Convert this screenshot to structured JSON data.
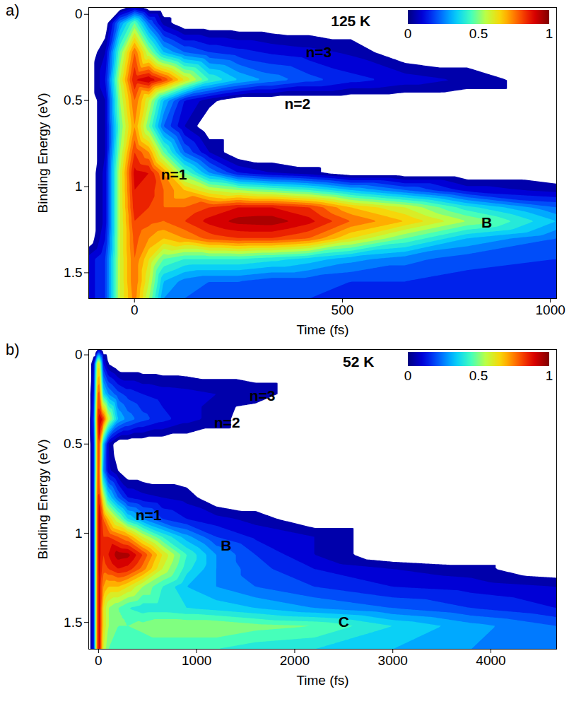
{
  "chart_data": [
    {
      "type": "heatmap",
      "panel": "a)",
      "x_label": "Time (fs)",
      "y_label": "Binding Energy (eV)",
      "xlim": [
        -110,
        1015
      ],
      "xticks": [
        0,
        500,
        1000
      ],
      "ylim": [
        1.65,
        -0.04
      ],
      "yticks": [
        0,
        0.5,
        1,
        1.5
      ],
      "x": [
        -110,
        -70,
        -35,
        0,
        35,
        70,
        120,
        180,
        250,
        330,
        420,
        520,
        650,
        800,
        1015
      ],
      "y": [
        -0.04,
        0.05,
        0.22,
        0.38,
        0.5,
        0.65,
        0.8,
        0.92,
        1.02,
        1.12,
        1.2,
        1.3,
        1.42,
        1.55,
        1.65
      ],
      "values": [
        [
          0,
          0,
          0,
          0.1,
          0,
          0,
          0,
          0,
          0,
          0,
          0,
          0,
          0,
          0,
          0
        ],
        [
          0,
          0,
          0.3,
          0.5,
          0.25,
          0.08,
          0,
          0,
          0,
          0,
          0,
          0,
          0,
          0,
          0
        ],
        [
          0,
          0.1,
          0.5,
          0.8,
          0.55,
          0.35,
          0.25,
          0.2,
          0.17,
          0.14,
          0.12,
          0.09,
          0,
          0,
          0
        ],
        [
          0,
          0.15,
          0.6,
          0.9,
          0.95,
          0.85,
          0.65,
          0.45,
          0.35,
          0.28,
          0.22,
          0.17,
          0.13,
          0.09,
          0
        ],
        [
          0,
          0.1,
          0.55,
          0.8,
          0.6,
          0.35,
          0.15,
          0.07,
          0,
          0,
          0,
          0,
          0,
          0,
          0
        ],
        [
          0,
          0.1,
          0.5,
          0.75,
          0.5,
          0.25,
          0.1,
          0,
          0,
          0,
          0,
          0,
          0,
          0,
          0
        ],
        [
          0,
          0.1,
          0.55,
          0.85,
          0.75,
          0.5,
          0.25,
          0.1,
          0,
          0,
          0,
          0,
          0,
          0,
          0
        ],
        [
          0,
          0.12,
          0.6,
          0.92,
          0.9,
          0.75,
          0.5,
          0.3,
          0.15,
          0.1,
          0.07,
          0,
          0,
          0,
          0
        ],
        [
          0,
          0.12,
          0.6,
          0.9,
          0.88,
          0.8,
          0.7,
          0.6,
          0.55,
          0.5,
          0.45,
          0.35,
          0.25,
          0.13,
          0.08
        ],
        [
          0,
          0.12,
          0.6,
          0.88,
          0.85,
          0.8,
          0.8,
          0.85,
          0.9,
          0.9,
          0.85,
          0.7,
          0.6,
          0.42,
          0.25
        ],
        [
          0,
          0.12,
          0.6,
          0.85,
          0.82,
          0.8,
          0.85,
          0.92,
          0.97,
          0.98,
          0.92,
          0.8,
          0.7,
          0.55,
          0.35
        ],
        [
          0,
          0.15,
          0.6,
          0.82,
          0.75,
          0.7,
          0.75,
          0.82,
          0.85,
          0.85,
          0.8,
          0.65,
          0.5,
          0.35,
          0.25
        ],
        [
          0.12,
          0.2,
          0.6,
          0.8,
          0.65,
          0.5,
          0.45,
          0.45,
          0.45,
          0.42,
          0.38,
          0.32,
          0.27,
          0.22,
          0.2
        ],
        [
          0.12,
          0.2,
          0.6,
          0.8,
          0.6,
          0.35,
          0.28,
          0.25,
          0.25,
          0.22,
          0.22,
          0.2,
          0.2,
          0.18,
          0.16
        ],
        [
          0.12,
          0.2,
          0.6,
          0.78,
          0.55,
          0.3,
          0.25,
          0.22,
          0.22,
          0.2,
          0.2,
          0.18,
          0.18,
          0.17,
          0.15
        ]
      ],
      "colorbar": {
        "range": [
          0,
          1
        ],
        "ticks": [
          0,
          0.5,
          1
        ]
      },
      "annotations": [
        {
          "text": "125 K",
          "x": 520,
          "y": 0.04
        },
        {
          "text": "n=3",
          "x": 443,
          "y": 0.22
        },
        {
          "text": "n=2",
          "x": 392,
          "y": 0.52
        },
        {
          "text": "n=1",
          "x": 95,
          "y": 0.93
        },
        {
          "text": "B",
          "x": 847,
          "y": 1.21
        }
      ]
    },
    {
      "type": "heatmap",
      "panel": "b)",
      "x_label": "Time (fs)",
      "y_label": "Binding Energy (eV)",
      "xlim": [
        -100,
        4670
      ],
      "xticks": [
        0,
        1000,
        2000,
        3000,
        4000
      ],
      "ylim": [
        1.65,
        -0.03
      ],
      "yticks": [
        0,
        0.5,
        1,
        1.5
      ],
      "x": [
        -100,
        -50,
        -20,
        0,
        20,
        50,
        100,
        200,
        300,
        450,
        650,
        900,
        1200,
        1600,
        2200,
        3000,
        3800,
        4670
      ],
      "y": [
        -0.03,
        0.05,
        0.22,
        0.36,
        0.5,
        0.65,
        0.8,
        0.92,
        1.02,
        1.12,
        1.2,
        1.3,
        1.42,
        1.52,
        1.65
      ],
      "values": [
        [
          0,
          0,
          0,
          0.1,
          0.05,
          0,
          0,
          0,
          0,
          0,
          0,
          0,
          0,
          0,
          0,
          0,
          0,
          0
        ],
        [
          0,
          0.1,
          0.5,
          0.7,
          0.5,
          0.15,
          0.05,
          0,
          0,
          0,
          0,
          0,
          0,
          0,
          0,
          0,
          0,
          0
        ],
        [
          0,
          0.15,
          0.6,
          0.9,
          0.7,
          0.4,
          0.3,
          0.22,
          0.18,
          0.15,
          0.13,
          0.12,
          0.1,
          0.08,
          0,
          0,
          0,
          0
        ],
        [
          0,
          0.2,
          0.7,
          0.95,
          0.95,
          0.85,
          0.6,
          0.35,
          0.28,
          0.22,
          0.17,
          0.12,
          0.08,
          0,
          0,
          0,
          0,
          0
        ],
        [
          0,
          0.15,
          0.65,
          0.9,
          0.7,
          0.35,
          0.1,
          0,
          0,
          0,
          0,
          0,
          0,
          0,
          0,
          0,
          0,
          0
        ],
        [
          0,
          0.15,
          0.65,
          0.9,
          0.65,
          0.3,
          0.12,
          0.05,
          0,
          0,
          0,
          0,
          0,
          0,
          0,
          0,
          0,
          0
        ],
        [
          0,
          0.15,
          0.7,
          0.92,
          0.8,
          0.6,
          0.4,
          0.25,
          0.15,
          0.12,
          0.1,
          0.08,
          0,
          0,
          0,
          0,
          0,
          0
        ],
        [
          0,
          0.15,
          0.7,
          0.95,
          0.9,
          0.8,
          0.7,
          0.55,
          0.4,
          0.3,
          0.2,
          0.15,
          0.12,
          0.08,
          0,
          0,
          0,
          0
        ],
        [
          0,
          0.15,
          0.7,
          0.95,
          0.9,
          0.85,
          0.85,
          0.8,
          0.75,
          0.6,
          0.45,
          0.32,
          0.2,
          0.14,
          0.1,
          0,
          0,
          0
        ],
        [
          0,
          0.15,
          0.7,
          0.95,
          0.9,
          0.85,
          0.9,
          0.98,
          0.97,
          0.85,
          0.65,
          0.45,
          0.3,
          0.2,
          0.1,
          0,
          0,
          0
        ],
        [
          0,
          0.15,
          0.7,
          0.95,
          0.88,
          0.82,
          0.85,
          0.9,
          0.88,
          0.78,
          0.6,
          0.42,
          0.3,
          0.22,
          0.15,
          0.1,
          0.07,
          0
        ],
        [
          0,
          0.15,
          0.7,
          0.95,
          0.85,
          0.75,
          0.7,
          0.7,
          0.65,
          0.55,
          0.45,
          0.35,
          0.3,
          0.25,
          0.2,
          0.15,
          0.13,
          0.1
        ],
        [
          0,
          0.15,
          0.7,
          0.95,
          0.85,
          0.65,
          0.55,
          0.5,
          0.45,
          0.42,
          0.42,
          0.4,
          0.38,
          0.35,
          0.3,
          0.25,
          0.2,
          0.15
        ],
        [
          0,
          0.15,
          0.7,
          0.95,
          0.85,
          0.65,
          0.55,
          0.5,
          0.5,
          0.52,
          0.55,
          0.55,
          0.55,
          0.52,
          0.5,
          0.4,
          0.32,
          0.25
        ],
        [
          0,
          0.15,
          0.7,
          0.95,
          0.85,
          0.6,
          0.5,
          0.45,
          0.45,
          0.45,
          0.45,
          0.45,
          0.45,
          0.42,
          0.4,
          0.35,
          0.3,
          0.25
        ]
      ],
      "colorbar": {
        "range": [
          0,
          1
        ],
        "ticks": [
          0,
          0.5,
          1
        ]
      },
      "annotations": [
        {
          "text": "52 K",
          "x": 2650,
          "y": 0.04
        },
        {
          "text": "n=3",
          "x": 1670,
          "y": 0.23
        },
        {
          "text": "n=2",
          "x": 1310,
          "y": 0.38
        },
        {
          "text": "n=1",
          "x": 510,
          "y": 0.9
        },
        {
          "text": "B",
          "x": 1300,
          "y": 1.07
        },
        {
          "text": "C",
          "x": 2500,
          "y": 1.5
        }
      ]
    }
  ]
}
